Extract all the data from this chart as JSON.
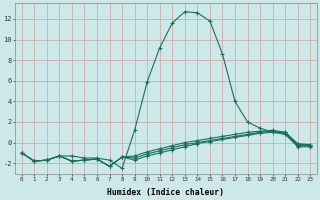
{
  "xlabel": "Humidex (Indice chaleur)",
  "line_color": "#1a7060",
  "background_color": "#cce8e8",
  "grid_color": "#d4a0a0",
  "xlim_min": -0.5,
  "xlim_max": 23.5,
  "ylim_min": -3.0,
  "ylim_max": 13.5,
  "ytick_values": [
    -2,
    0,
    2,
    4,
    6,
    8,
    10,
    12
  ],
  "line1_x": [
    0,
    1,
    2,
    3,
    4,
    5,
    6,
    7,
    8,
    9,
    10,
    11,
    12,
    13,
    14,
    15,
    16,
    17,
    18,
    19,
    20,
    21,
    22,
    23
  ],
  "line1_y": [
    -1.0,
    -1.8,
    -1.7,
    -1.3,
    -1.3,
    -1.5,
    -1.5,
    -1.7,
    -2.5,
    1.2,
    5.9,
    9.2,
    11.6,
    12.7,
    12.6,
    11.8,
    8.6,
    4.0,
    2.0,
    1.4,
    1.0,
    1.0,
    -0.2,
    -0.2
  ],
  "line2_x": [
    0,
    1,
    2,
    3,
    4,
    5,
    6,
    7,
    8,
    9,
    10,
    11,
    12,
    13,
    14,
    15,
    16,
    17,
    18,
    19,
    20,
    21,
    22,
    23
  ],
  "line2_y": [
    -1.0,
    -1.8,
    -1.7,
    -1.3,
    -1.8,
    -1.7,
    -1.6,
    -2.3,
    -1.4,
    -1.3,
    -0.9,
    -0.6,
    -0.3,
    0.0,
    0.2,
    0.4,
    0.6,
    0.8,
    1.0,
    1.1,
    1.2,
    1.0,
    -0.1,
    -0.2
  ],
  "line3_x": [
    0,
    1,
    2,
    3,
    4,
    5,
    6,
    7,
    8,
    9,
    10,
    11,
    12,
    13,
    14,
    15,
    16,
    17,
    18,
    19,
    20,
    21,
    22,
    23
  ],
  "line3_y": [
    -1.0,
    -1.8,
    -1.7,
    -1.3,
    -1.8,
    -1.7,
    -1.6,
    -2.3,
    -1.4,
    -1.5,
    -1.1,
    -0.8,
    -0.5,
    -0.2,
    0.0,
    0.2,
    0.4,
    0.6,
    0.8,
    1.0,
    1.1,
    0.9,
    -0.3,
    -0.3
  ],
  "line4_x": [
    0,
    1,
    2,
    3,
    4,
    5,
    6,
    7,
    8,
    9,
    10,
    11,
    12,
    13,
    14,
    15,
    16,
    17,
    18,
    19,
    20,
    21,
    22,
    23
  ],
  "line4_y": [
    -1.0,
    -1.8,
    -1.7,
    -1.3,
    -1.8,
    -1.7,
    -1.6,
    -2.3,
    -1.4,
    -1.7,
    -1.3,
    -1.0,
    -0.7,
    -0.4,
    -0.1,
    0.1,
    0.3,
    0.5,
    0.7,
    0.9,
    1.0,
    0.8,
    -0.4,
    -0.4
  ]
}
